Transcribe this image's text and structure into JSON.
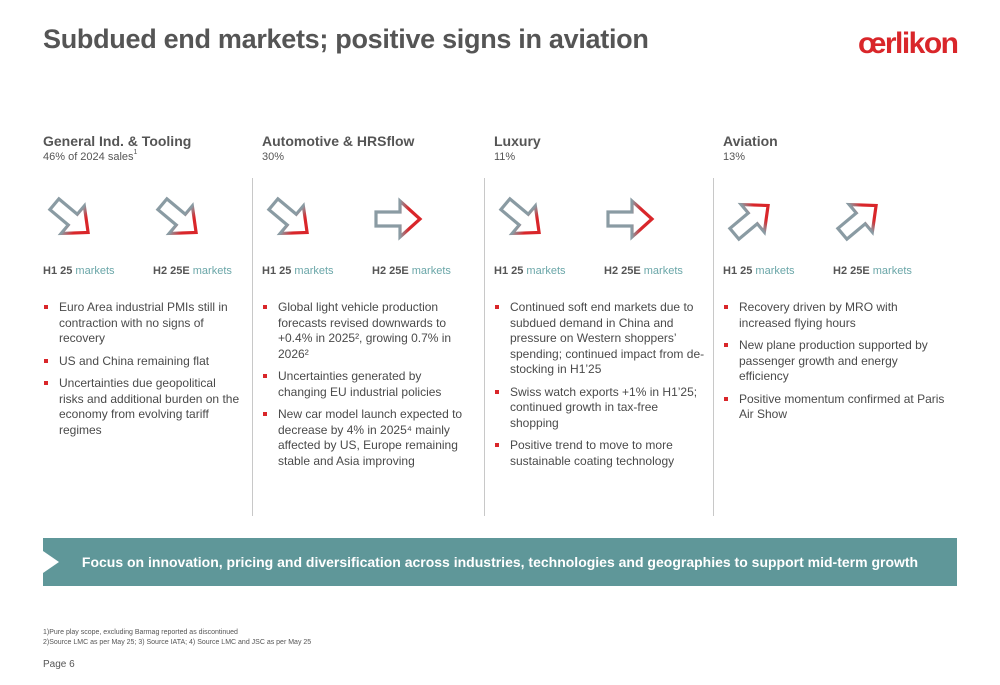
{
  "header": {
    "title": "Subdued end markets; positive signs in aviation",
    "logo": "œrlikon"
  },
  "colors": {
    "accent_red": "#d9262a",
    "teal": "#5f9799",
    "teal_text": "#6aa6a8",
    "arrow_grey": "#8a9ba3"
  },
  "columns": [
    {
      "title": "General Ind. & Tooling",
      "subtitle": "46% of 2024 sales",
      "subtitle_note": "1",
      "h1_label": "H1 25",
      "h1_suffix": "markets",
      "h1_trend": "down",
      "h2_label": "H2 25E",
      "h2_suffix": "markets",
      "h2_trend": "down",
      "bullets": [
        "Euro Area industrial PMIs still in contraction with no signs of recovery",
        "US and China remaining flat",
        "Uncertainties due geopolitical risks and additional burden on the economy from evolving tariff regimes"
      ]
    },
    {
      "title": "Automotive & HRSflow",
      "subtitle": "30%",
      "h1_label": "H1 25",
      "h1_suffix": "markets",
      "h1_trend": "down",
      "h2_label": "H2 25E",
      "h2_suffix": "markets",
      "h2_trend": "flat",
      "bullets": [
        "Global light vehicle production forecasts revised downwards to +0.4% in 2025², growing 0.7% in 2026²",
        "Uncertainties generated by changing EU industrial policies",
        "New car model launch expected to decrease by 4% in 2025⁴ mainly affected by US, Europe remaining stable and Asia improving"
      ]
    },
    {
      "title": "Luxury",
      "subtitle": "11%",
      "h1_label": "H1 25",
      "h1_suffix": "markets",
      "h1_trend": "down",
      "h2_label": "H2 25E",
      "h2_suffix": "markets",
      "h2_trend": "flat",
      "bullets": [
        "Continued soft end markets due to subdued demand in China and pressure on Western shoppers’ spending; continued impact from de-stocking in H1’25",
        "Swiss watch exports +1% in H1’25; continued growth in tax-free shopping",
        "Positive trend to move to more sustainable coating technology"
      ]
    },
    {
      "title": "Aviation",
      "subtitle": "13%",
      "h1_label": "H1 25",
      "h1_suffix": "markets",
      "h1_trend": "up",
      "h2_label": "H2 25E",
      "h2_suffix": "markets",
      "h2_trend": "up",
      "bullets": [
        "Recovery driven by MRO with increased flying hours",
        "New plane production supported by passenger growth and energy efficiency",
        "Positive momentum confirmed at Paris Air Show"
      ]
    }
  ],
  "banner": {
    "text": "Focus on innovation, pricing and diversification across industries, technologies and geographies to support mid-term growth"
  },
  "footnotes": {
    "line1": "1)Pure play scope, excluding Barmag reported as discontinued",
    "line2": "2)Source LMC as per May 25; 3) Source IATA; 4) Source LMC and JSC as per May 25"
  },
  "page": {
    "label": "Page 6"
  }
}
